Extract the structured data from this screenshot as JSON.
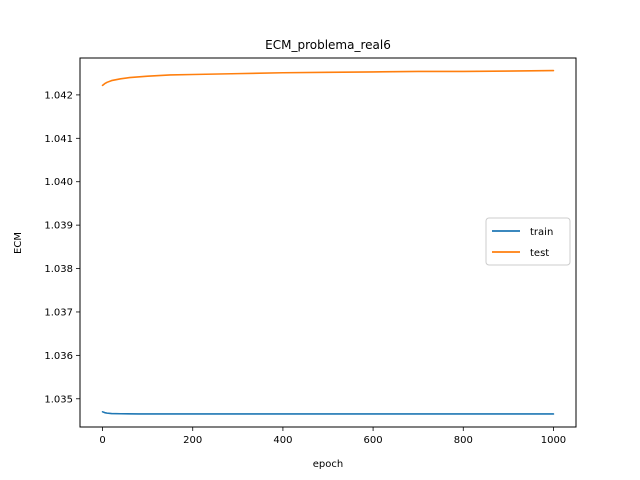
{
  "chart_data": {
    "type": "line",
    "title": "ECM_problema_real6",
    "xlabel": "epoch",
    "ylabel": "ECM",
    "xlim": [
      -50,
      1050
    ],
    "ylim": [
      1.03435,
      1.04285
    ],
    "xticks": [
      0,
      200,
      400,
      600,
      800,
      1000
    ],
    "yticks": [
      1.035,
      1.036,
      1.037,
      1.038,
      1.039,
      1.04,
      1.041,
      1.042
    ],
    "ytick_labels": [
      "1.035",
      "1.036",
      "1.037",
      "1.038",
      "1.039",
      "1.040",
      "1.041",
      "1.042"
    ],
    "grid": false,
    "legend_position": "center-right",
    "series": [
      {
        "name": "train",
        "color": "#1f77b4",
        "x": [
          0,
          5,
          10,
          20,
          40,
          80,
          150,
          300,
          500,
          700,
          1000
        ],
        "y": [
          1.0347,
          1.03468,
          1.03467,
          1.03466,
          1.034655,
          1.03465,
          1.03465,
          1.03465,
          1.03465,
          1.03465,
          1.03465
        ]
      },
      {
        "name": "test",
        "color": "#ff7f0e",
        "x": [
          0,
          5,
          10,
          20,
          40,
          60,
          100,
          150,
          200,
          300,
          400,
          500,
          600,
          700,
          800,
          900,
          1000
        ],
        "y": [
          1.04222,
          1.04226,
          1.04229,
          1.04233,
          1.04237,
          1.0424,
          1.04243,
          1.04246,
          1.04247,
          1.04249,
          1.04251,
          1.04252,
          1.04253,
          1.04254,
          1.04254,
          1.04255,
          1.04256
        ]
      }
    ]
  }
}
